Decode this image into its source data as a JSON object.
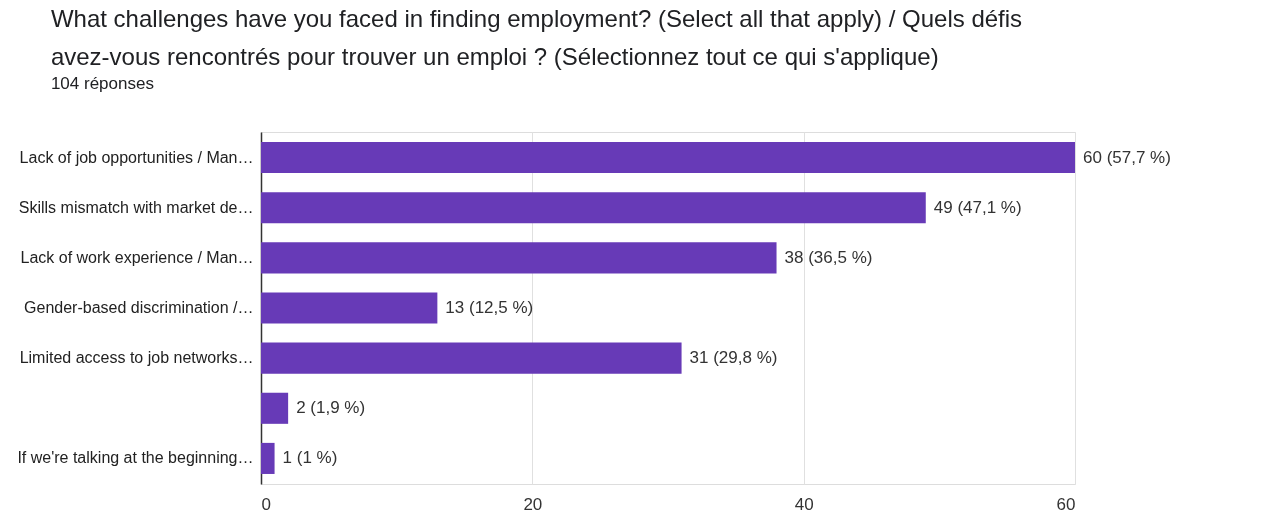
{
  "chart_data": {
    "type": "bar",
    "orientation": "horizontal",
    "title": [
      "What challenges have you faced in finding employment? (Select all that apply) / Quels défis",
      "avez-vous rencontrés pour trouver un emploi ? (Sélectionnez tout ce qui s'applique)"
    ],
    "subtitle": "104 réponses",
    "categories": [
      "Lack of job opportunities / Man…",
      "Skills mismatch with market de…",
      "Lack of work experience / Man…",
      "Gender-based discrimination /…",
      "Limited access to job networks…",
      null,
      "If we're talking at the beginning…"
    ],
    "values": [
      60,
      49,
      38,
      13,
      31,
      2,
      1
    ],
    "value_labels": [
      "60 (57,7 %)",
      "49 (47,1 %)",
      "38 (36,5 %)",
      "13 (12,5 %)",
      "31 (29,8 %)",
      "2 (1,9 %)",
      "1 (1 %)"
    ],
    "color": "#673ab7",
    "xlim": [
      0,
      60
    ],
    "xticks": [
      0,
      20,
      40,
      60
    ],
    "grid": "x"
  }
}
